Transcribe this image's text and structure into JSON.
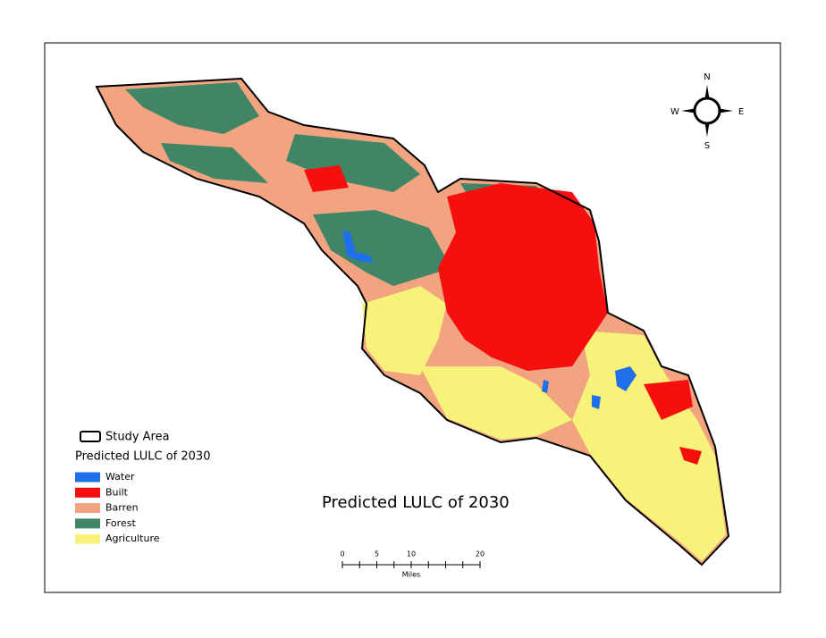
{
  "map": {
    "title": "Predicted LULC of 2030",
    "legend": {
      "boundary": "Study Area",
      "heading": "Predicted LULC of 2030",
      "classes": [
        {
          "label": "Water",
          "color": "#1f6fe8"
        },
        {
          "label": "Built",
          "color": "#f50f0f"
        },
        {
          "label": "Barren",
          "color": "#f2a37f"
        },
        {
          "label": "Forest",
          "color": "#3f8566"
        },
        {
          "label": "Agriculture",
          "color": "#f7f27a"
        }
      ]
    },
    "compass": {
      "n": "N",
      "s": "S",
      "e": "E",
      "w": "W"
    },
    "scale_bar": {
      "ticks": [
        0,
        5,
        10,
        20
      ],
      "unit": "Miles"
    }
  }
}
